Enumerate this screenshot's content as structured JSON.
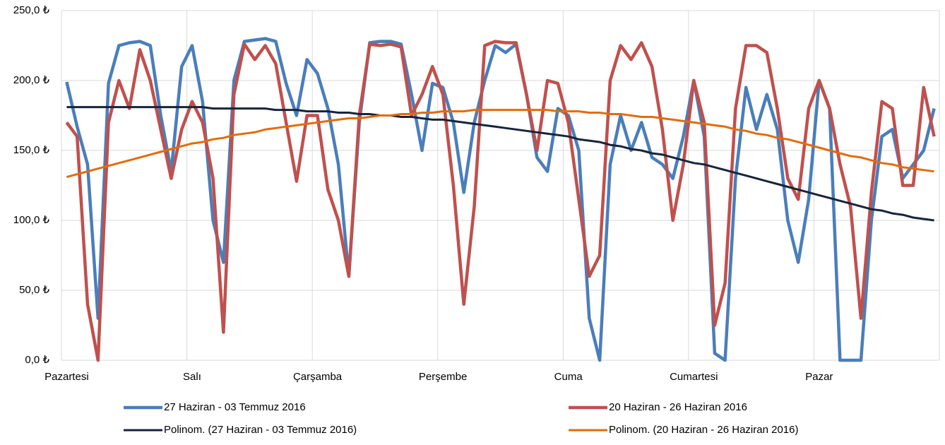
{
  "chart_data": {
    "type": "line",
    "categories": [
      "Pazartesi",
      null,
      null,
      null,
      null,
      null,
      null,
      null,
      null,
      null,
      null,
      null,
      "Salı",
      null,
      null,
      null,
      null,
      null,
      null,
      null,
      null,
      null,
      null,
      null,
      "Çarşamba",
      null,
      null,
      null,
      null,
      null,
      null,
      null,
      null,
      null,
      null,
      null,
      "Perşembe",
      null,
      null,
      null,
      null,
      null,
      null,
      null,
      null,
      null,
      null,
      null,
      "Cuma",
      null,
      null,
      null,
      null,
      null,
      null,
      null,
      null,
      null,
      null,
      null,
      "Cumartesi",
      null,
      null,
      null,
      null,
      null,
      null,
      null,
      null,
      null,
      null,
      null,
      "Pazar",
      null,
      null,
      null,
      null,
      null,
      null,
      null,
      null,
      null,
      null,
      null
    ],
    "series": [
      {
        "name": "27 Haziran - 03 Temmuz 2016",
        "color": "#4a7ebb",
        "width": 4.5,
        "values": [
          199,
          167,
          140,
          30,
          198,
          225,
          227,
          228,
          225,
          175,
          135,
          210,
          225,
          185,
          100,
          70,
          200,
          228,
          229,
          230,
          228,
          198,
          175,
          215,
          205,
          180,
          140,
          60,
          170,
          227,
          228,
          228,
          226,
          190,
          150,
          198,
          195,
          170,
          120,
          170,
          200,
          225,
          220,
          226,
          190,
          145,
          135,
          180,
          175,
          150,
          30,
          0,
          140,
          175,
          150,
          170,
          145,
          140,
          130,
          160,
          200,
          160,
          5,
          0,
          130,
          195,
          165,
          190,
          165,
          100,
          70,
          115,
          200,
          180,
          0,
          0,
          0,
          100,
          160,
          165,
          130,
          140,
          150,
          180
        ]
      },
      {
        "name": "20 Haziran - 26 Haziran 2016",
        "color": "#c0504d",
        "width": 4.5,
        "values": [
          170,
          160,
          40,
          0,
          170,
          200,
          180,
          222,
          200,
          165,
          130,
          165,
          185,
          170,
          130,
          20,
          190,
          226,
          215,
          225,
          212,
          170,
          128,
          175,
          175,
          122,
          100,
          60,
          175,
          226,
          225,
          226,
          224,
          175,
          190,
          210,
          190,
          125,
          40,
          110,
          225,
          228,
          227,
          227,
          190,
          150,
          200,
          198,
          170,
          115,
          60,
          75,
          200,
          225,
          215,
          227,
          210,
          165,
          100,
          140,
          200,
          170,
          25,
          55,
          180,
          225,
          225,
          220,
          180,
          130,
          115,
          180,
          200,
          180,
          140,
          110,
          30,
          120,
          185,
          180,
          125,
          125,
          195,
          160
        ]
      },
      {
        "name": "Polinom. (27 Haziran - 03 Temmuz 2016)",
        "color": "#17243b",
        "width": 3,
        "values": [
          181,
          181,
          181,
          181,
          181,
          181,
          181,
          181,
          181,
          181,
          181,
          181,
          181,
          181,
          180,
          180,
          180,
          180,
          180,
          180,
          179,
          179,
          179,
          178,
          178,
          178,
          177,
          177,
          176,
          176,
          175,
          175,
          174,
          174,
          173,
          172,
          172,
          171,
          170,
          169,
          168,
          167,
          166,
          165,
          164,
          163,
          162,
          161,
          160,
          158,
          157,
          156,
          154,
          153,
          151,
          150,
          148,
          147,
          145,
          143,
          141,
          140,
          138,
          136,
          134,
          132,
          130,
          128,
          126,
          124,
          122,
          120,
          118,
          116,
          114,
          112,
          110,
          108,
          107,
          105,
          104,
          102,
          101,
          100
        ]
      },
      {
        "name": "Polinom. (20 Haziran - 26 Haziran 2016)",
        "color": "#e36c0a",
        "width": 3,
        "values": [
          131,
          133,
          135,
          137,
          139,
          141,
          143,
          145,
          147,
          149,
          151,
          153,
          155,
          156,
          158,
          159,
          161,
          162,
          163,
          165,
          166,
          167,
          168,
          169,
          170,
          171,
          172,
          173,
          173,
          174,
          175,
          175,
          176,
          176,
          177,
          177,
          178,
          178,
          178,
          179,
          179,
          179,
          179,
          179,
          179,
          179,
          179,
          178,
          178,
          178,
          177,
          177,
          176,
          176,
          175,
          174,
          174,
          173,
          172,
          171,
          170,
          169,
          168,
          167,
          165,
          164,
          162,
          161,
          159,
          158,
          156,
          154,
          152,
          150,
          148,
          146,
          145,
          143,
          141,
          140,
          138,
          137,
          136,
          135
        ]
      }
    ],
    "ylim": [
      0,
      250
    ],
    "yticks": [
      {
        "value": 0,
        "label": "0,0 ₺"
      },
      {
        "value": 50,
        "label": "50,0 ₺"
      },
      {
        "value": 100,
        "label": "100,0 ₺"
      },
      {
        "value": 150,
        "label": "150,0 ₺"
      },
      {
        "value": 200,
        "label": "200,0 ₺"
      },
      {
        "value": 250,
        "label": "250,0 ₺"
      }
    ],
    "grid": true,
    "legend": "bottom"
  }
}
